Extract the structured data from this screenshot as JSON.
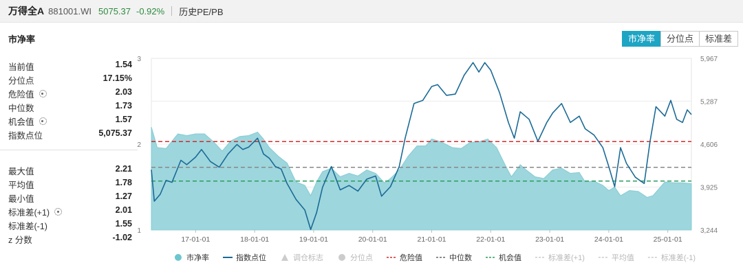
{
  "header": {
    "name": "万得全A",
    "code": "881001.WI",
    "price": "5075.37",
    "change": "-0.92%",
    "history": "历史PE/PB"
  },
  "panel": {
    "title": "市净率",
    "tabs": [
      {
        "label": "市净率",
        "active": true
      },
      {
        "label": "分位点",
        "active": false
      },
      {
        "label": "标准差",
        "active": false
      }
    ]
  },
  "stats_top": [
    {
      "label": "当前值",
      "value": "1.54",
      "gear": false
    },
    {
      "label": "分位点",
      "value": "17.15%",
      "gear": false
    },
    {
      "label": "危险值",
      "value": "2.03",
      "gear": true
    },
    {
      "label": "中位数",
      "value": "1.73",
      "gear": false
    },
    {
      "label": "机会值",
      "value": "1.57",
      "gear": true
    },
    {
      "label": "指数点位",
      "value": "5,075.37",
      "gear": false
    }
  ],
  "stats_bottom": [
    {
      "label": "最大值",
      "value": "2.21",
      "gear": false
    },
    {
      "label": "平均值",
      "value": "1.78",
      "gear": false
    },
    {
      "label": "最小值",
      "value": "1.27",
      "gear": false
    },
    {
      "label": "标准差(+1)",
      "value": "2.01",
      "gear": true
    },
    {
      "label": "标准差(-1)",
      "value": "1.55",
      "gear": false
    },
    {
      "label": "z 分数",
      "value": "-1.02",
      "gear": false
    }
  ],
  "colors": {
    "area": "#9dd6dd",
    "index_line": "#1b6a96",
    "danger": "#d42a2a",
    "median": "#888888",
    "opportunity": "#2a9d5c",
    "accent": "#1ea5c4"
  },
  "chart_data": {
    "type": "area",
    "x_ticks": [
      "17-01-01",
      "18-01-01",
      "19-01-01",
      "20-01-01",
      "21-01-01",
      "22-01-01",
      "23-01-01",
      "24-01-01",
      "25-01-01"
    ],
    "x_range": [
      2016.25,
      2025.4
    ],
    "y_left": {
      "ticks": [
        "3",
        "2",
        "1"
      ],
      "range": [
        1,
        3
      ]
    },
    "y_right": {
      "ticks": [
        "5,967",
        "5,287",
        "4,606",
        "3,925",
        "3,244"
      ],
      "range": [
        3244,
        5967
      ]
    },
    "reference_lines": [
      {
        "name": "危险值",
        "value": 2.03,
        "style": "dashed",
        "color": "#d42a2a"
      },
      {
        "name": "中位数",
        "value": 1.73,
        "style": "dashed",
        "color": "#888888"
      },
      {
        "name": "机会值",
        "value": 1.57,
        "style": "dashed",
        "color": "#2a9d5c"
      }
    ],
    "pb_series": {
      "name": "市净率",
      "points": [
        [
          2016.25,
          2.2
        ],
        [
          2016.35,
          1.96
        ],
        [
          2016.5,
          1.95
        ],
        [
          2016.7,
          2.12
        ],
        [
          2016.85,
          2.1
        ],
        [
          2017.0,
          2.12
        ],
        [
          2017.15,
          2.12
        ],
        [
          2017.3,
          2.03
        ],
        [
          2017.45,
          1.92
        ],
        [
          2017.6,
          2.04
        ],
        [
          2017.75,
          2.09
        ],
        [
          2017.9,
          2.1
        ],
        [
          2018.05,
          2.14
        ],
        [
          2018.15,
          2.06
        ],
        [
          2018.25,
          1.96
        ],
        [
          2018.4,
          1.86
        ],
        [
          2018.55,
          1.78
        ],
        [
          2018.7,
          1.56
        ],
        [
          2018.85,
          1.52
        ],
        [
          2018.95,
          1.4
        ],
        [
          2019.05,
          1.56
        ],
        [
          2019.15,
          1.68
        ],
        [
          2019.3,
          1.72
        ],
        [
          2019.45,
          1.62
        ],
        [
          2019.6,
          1.66
        ],
        [
          2019.75,
          1.63
        ],
        [
          2019.9,
          1.7
        ],
        [
          2020.05,
          1.66
        ],
        [
          2020.2,
          1.55
        ],
        [
          2020.3,
          1.6
        ],
        [
          2020.45,
          1.7
        ],
        [
          2020.6,
          1.86
        ],
        [
          2020.75,
          1.98
        ],
        [
          2020.9,
          1.98
        ],
        [
          2021.0,
          2.06
        ],
        [
          2021.15,
          2.03
        ],
        [
          2021.35,
          1.96
        ],
        [
          2021.5,
          1.95
        ],
        [
          2021.65,
          2.02
        ],
        [
          2021.8,
          2.03
        ],
        [
          2021.95,
          2.06
        ],
        [
          2022.1,
          1.96
        ],
        [
          2022.25,
          1.75
        ],
        [
          2022.35,
          1.62
        ],
        [
          2022.5,
          1.76
        ],
        [
          2022.6,
          1.7
        ],
        [
          2022.75,
          1.62
        ],
        [
          2022.9,
          1.6
        ],
        [
          2023.05,
          1.7
        ],
        [
          2023.2,
          1.72
        ],
        [
          2023.35,
          1.66
        ],
        [
          2023.5,
          1.67
        ],
        [
          2023.6,
          1.56
        ],
        [
          2023.75,
          1.57
        ],
        [
          2023.9,
          1.52
        ],
        [
          2024.0,
          1.46
        ],
        [
          2024.1,
          1.5
        ],
        [
          2024.2,
          1.4
        ],
        [
          2024.35,
          1.46
        ],
        [
          2024.5,
          1.45
        ],
        [
          2024.65,
          1.38
        ],
        [
          2024.75,
          1.4
        ],
        [
          2024.85,
          1.48
        ],
        [
          2024.95,
          1.56
        ],
        [
          2025.1,
          1.55
        ],
        [
          2025.25,
          1.55
        ],
        [
          2025.4,
          1.54
        ]
      ]
    },
    "index_series": {
      "name": "指数点位",
      "points": [
        [
          2016.25,
          4200
        ],
        [
          2016.3,
          3700
        ],
        [
          2016.4,
          3810
        ],
        [
          2016.5,
          4030
        ],
        [
          2016.6,
          4000
        ],
        [
          2016.75,
          4350
        ],
        [
          2016.85,
          4280
        ],
        [
          2017.0,
          4400
        ],
        [
          2017.1,
          4520
        ],
        [
          2017.25,
          4330
        ],
        [
          2017.4,
          4240
        ],
        [
          2017.55,
          4450
        ],
        [
          2017.7,
          4600
        ],
        [
          2017.8,
          4520
        ],
        [
          2017.9,
          4560
        ],
        [
          2018.05,
          4700
        ],
        [
          2018.15,
          4450
        ],
        [
          2018.25,
          4380
        ],
        [
          2018.35,
          4250
        ],
        [
          2018.45,
          4210
        ],
        [
          2018.55,
          3980
        ],
        [
          2018.7,
          3730
        ],
        [
          2018.85,
          3560
        ],
        [
          2018.95,
          3250
        ],
        [
          2019.05,
          3520
        ],
        [
          2019.15,
          3920
        ],
        [
          2019.3,
          4250
        ],
        [
          2019.45,
          3880
        ],
        [
          2019.6,
          3950
        ],
        [
          2019.75,
          3860
        ],
        [
          2019.9,
          4050
        ],
        [
          2020.05,
          4100
        ],
        [
          2020.15,
          3780
        ],
        [
          2020.3,
          3930
        ],
        [
          2020.45,
          4250
        ],
        [
          2020.55,
          4700
        ],
        [
          2020.7,
          5250
        ],
        [
          2020.85,
          5300
        ],
        [
          2021.0,
          5520
        ],
        [
          2021.1,
          5550
        ],
        [
          2021.25,
          5380
        ],
        [
          2021.4,
          5400
        ],
        [
          2021.55,
          5700
        ],
        [
          2021.7,
          5900
        ],
        [
          2021.8,
          5750
        ],
        [
          2021.9,
          5900
        ],
        [
          2022.0,
          5780
        ],
        [
          2022.15,
          5420
        ],
        [
          2022.3,
          4950
        ],
        [
          2022.4,
          4700
        ],
        [
          2022.5,
          5120
        ],
        [
          2022.65,
          5000
        ],
        [
          2022.8,
          4650
        ],
        [
          2022.95,
          4950
        ],
        [
          2023.05,
          5100
        ],
        [
          2023.2,
          5250
        ],
        [
          2023.35,
          4950
        ],
        [
          2023.5,
          5050
        ],
        [
          2023.6,
          4850
        ],
        [
          2023.75,
          4750
        ],
        [
          2023.9,
          4550
        ],
        [
          2024.0,
          4250
        ],
        [
          2024.1,
          3930
        ],
        [
          2024.2,
          4550
        ],
        [
          2024.3,
          4300
        ],
        [
          2024.45,
          4080
        ],
        [
          2024.6,
          3980
        ],
        [
          2024.7,
          4650
        ],
        [
          2024.8,
          5200
        ],
        [
          2024.95,
          5050
        ],
        [
          2025.05,
          5300
        ],
        [
          2025.15,
          5000
        ],
        [
          2025.25,
          4950
        ],
        [
          2025.33,
          5150
        ],
        [
          2025.4,
          5075
        ]
      ]
    },
    "legend": {
      "position": "bottom",
      "items": [
        {
          "label": "市净率",
          "marker": "dot",
          "color": "#6cc6cf",
          "active": true
        },
        {
          "label": "指数点位",
          "marker": "line",
          "color": "#1b6a96",
          "active": true
        },
        {
          "label": "调仓标志",
          "marker": "triangle",
          "color": "#cccccc",
          "active": false
        },
        {
          "label": "分位点",
          "marker": "dot",
          "color": "#cccccc",
          "active": false
        },
        {
          "label": "危险值",
          "marker": "dash",
          "color": "#d42a2a",
          "active": true
        },
        {
          "label": "中位数",
          "marker": "dash",
          "color": "#666666",
          "active": true
        },
        {
          "label": "机会值",
          "marker": "dash",
          "color": "#2a9d5c",
          "active": true
        },
        {
          "label": "标准差(+1)",
          "marker": "dash",
          "color": "#cccccc",
          "active": false
        },
        {
          "label": "平均值",
          "marker": "dash",
          "color": "#cccccc",
          "active": false
        },
        {
          "label": "标准差(-1)",
          "marker": "dash",
          "color": "#cccccc",
          "active": false
        }
      ]
    }
  }
}
